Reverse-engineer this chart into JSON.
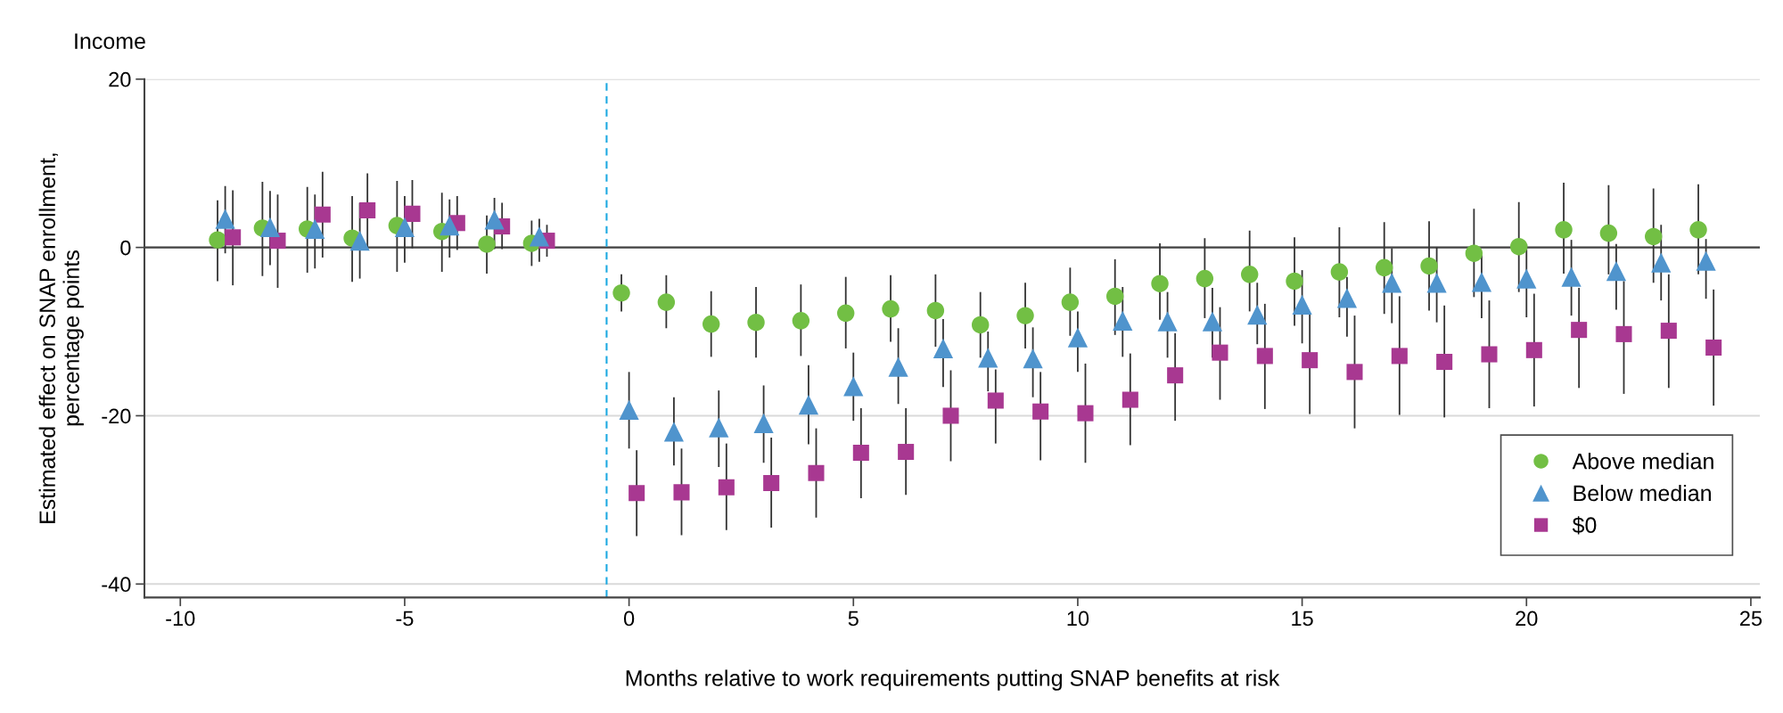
{
  "chart_data": {
    "type": "scatter",
    "xlabel": "Months relative to work requirements putting SNAP benefits at risk",
    "ylabel": "Estimated effect on SNAP enrollment,\npercentage points",
    "legend_title": "Income",
    "xlim": [
      -10.8,
      25.2
    ],
    "ylim": [
      -41.6,
      20
    ],
    "xticks": [
      -10,
      -5,
      0,
      5,
      10,
      15,
      20,
      25
    ],
    "yticks": [
      -40,
      -20,
      0,
      20
    ],
    "grid": "y",
    "legend": "bottom right",
    "ref_lines": [
      {
        "axis": "y",
        "value": 0,
        "label": null,
        "color": "#444444",
        "line_style": "solid"
      },
      {
        "axis": "x",
        "value": -0.5,
        "label": null,
        "color": "#1ca9e1",
        "line_style": "dashed"
      }
    ],
    "series": [
      {
        "name": "Above median",
        "color": "#72bf44",
        "marker": "circle",
        "x": [
          -9.17,
          -8.17,
          -7.17,
          -6.17,
          -5.17,
          -4.17,
          -3.17,
          -2.17,
          -0.17,
          0.83,
          1.83,
          2.83,
          3.83,
          4.83,
          5.83,
          6.83,
          7.83,
          8.83,
          9.83,
          10.83,
          11.83,
          12.83,
          13.83,
          14.83,
          15.83,
          16.83,
          17.83,
          18.83,
          19.83,
          20.83,
          21.83,
          22.83,
          23.83
        ],
        "values": [
          0.9,
          2.3,
          2.2,
          1.1,
          2.6,
          1.9,
          0.4,
          0.5,
          -5.4,
          -6.5,
          -9.1,
          -8.9,
          -8.7,
          -7.8,
          -7.3,
          -7.5,
          -9.2,
          -8.1,
          -6.5,
          -5.8,
          -4.3,
          -3.7,
          -3.2,
          -4.0,
          -2.9,
          -2.4,
          -2.2,
          -0.7,
          0.1,
          2.1,
          1.7,
          1.3,
          2.1
        ],
        "errors": [
          [
            -4.0,
            5.6
          ],
          [
            -3.4,
            7.8
          ],
          [
            -3.0,
            7.2
          ],
          [
            -4.1,
            6.1
          ],
          [
            -2.9,
            7.9
          ],
          [
            -2.9,
            6.5
          ],
          [
            -3.1,
            3.8
          ],
          [
            -2.2,
            3.2
          ],
          [
            -7.6,
            -3.2
          ],
          [
            -9.6,
            -3.3
          ],
          [
            -13.0,
            -5.2
          ],
          [
            -13.1,
            -4.7
          ],
          [
            -12.9,
            -4.4
          ],
          [
            -12.0,
            -3.5
          ],
          [
            -11.2,
            -3.3
          ],
          [
            -11.8,
            -3.2
          ],
          [
            -13.1,
            -5.3
          ],
          [
            -12.0,
            -4.2
          ],
          [
            -10.5,
            -2.4
          ],
          [
            -10.4,
            -1.4
          ],
          [
            -8.6,
            0.5
          ],
          [
            -8.4,
            1.1
          ],
          [
            -7.6,
            2.0
          ],
          [
            -9.3,
            1.2
          ],
          [
            -8.3,
            2.4
          ],
          [
            -7.9,
            3.0
          ],
          [
            -7.5,
            3.1
          ],
          [
            -5.9,
            4.6
          ],
          [
            -5.3,
            5.4
          ],
          [
            -3.1,
            7.7
          ],
          [
            -3.2,
            7.4
          ],
          [
            -4.2,
            7.0
          ],
          [
            -3.2,
            7.5
          ]
        ]
      },
      {
        "name": "Below median",
        "color": "#4f94cd",
        "marker": "triangle",
        "x": [
          -9,
          -8,
          -7,
          -6,
          -5,
          -4,
          -3,
          -2,
          0,
          1,
          2,
          3,
          4,
          5,
          6,
          7,
          8,
          9,
          10,
          11,
          12,
          13,
          14,
          15,
          16,
          17,
          18,
          19,
          20,
          21,
          22,
          23,
          24
        ],
        "values": [
          3.4,
          2.4,
          2.2,
          0.8,
          2.4,
          2.6,
          3.3,
          1.3,
          -19.3,
          -21.9,
          -21.4,
          -20.9,
          -18.7,
          -16.5,
          -14.2,
          -12.0,
          -13.1,
          -13.2,
          -10.7,
          -8.7,
          -8.8,
          -8.8,
          -8.0,
          -6.8,
          -6.0,
          -4.2,
          -4.2,
          -4.1,
          -3.7,
          -3.5,
          -2.8,
          -1.8,
          -1.6
        ],
        "errors": [
          [
            -0.7,
            7.3
          ],
          [
            -2.1,
            6.7
          ],
          [
            -2.5,
            6.3
          ],
          [
            -3.7,
            5.3
          ],
          [
            -1.8,
            6.1
          ],
          [
            -1.2,
            5.7
          ],
          [
            -0.2,
            5.9
          ],
          [
            -1.7,
            3.4
          ],
          [
            -23.9,
            -14.8
          ],
          [
            -25.9,
            -17.8
          ],
          [
            -26.1,
            -17.0
          ],
          [
            -25.6,
            -16.4
          ],
          [
            -23.4,
            -14.0
          ],
          [
            -20.6,
            -12.5
          ],
          [
            -18.6,
            -9.6
          ],
          [
            -16.6,
            -8.5
          ],
          [
            -17.1,
            -10.0
          ],
          [
            -17.8,
            -9.5
          ],
          [
            -14.8,
            -7.6
          ],
          [
            -13.0,
            -4.7
          ],
          [
            -13.1,
            -5.3
          ],
          [
            -13.1,
            -4.8
          ],
          [
            -11.5,
            -4.2
          ],
          [
            -11.4,
            -2.7
          ],
          [
            -10.6,
            -3.5
          ],
          [
            -9.0,
            -0.1
          ],
          [
            -8.9,
            0.0
          ],
          [
            -8.4,
            -0.9
          ],
          [
            -8.3,
            0.4
          ],
          [
            -8.1,
            0.9
          ],
          [
            -7.4,
            0.4
          ],
          [
            -6.3,
            2.7
          ],
          [
            -6.1,
            1.0
          ]
        ]
      },
      {
        "name": "$0",
        "color": "#a83891",
        "marker": "square",
        "x": [
          -8.83,
          -7.83,
          -6.83,
          -5.83,
          -4.83,
          -3.83,
          -2.83,
          -1.83,
          0.17,
          1.17,
          2.17,
          3.17,
          4.17,
          5.17,
          6.17,
          7.17,
          8.17,
          9.17,
          10.17,
          11.17,
          12.17,
          13.17,
          14.17,
          15.17,
          16.17,
          17.17,
          18.17,
          19.17,
          20.17,
          21.17,
          22.17,
          23.17,
          24.17
        ],
        "values": [
          1.2,
          0.8,
          3.9,
          4.4,
          4.0,
          2.9,
          2.5,
          0.8,
          -29.2,
          -29.1,
          -28.5,
          -28.0,
          -26.8,
          -24.4,
          -24.3,
          -20.0,
          -18.2,
          -19.5,
          -19.7,
          -18.1,
          -15.2,
          -12.5,
          -12.9,
          -13.4,
          -14.8,
          -12.9,
          -13.6,
          -12.7,
          -12.2,
          -9.8,
          -10.3,
          -9.9,
          -11.9
        ],
        "errors": [
          [
            -4.5,
            6.8
          ],
          [
            -4.8,
            6.3
          ],
          [
            -1.2,
            9.0
          ],
          [
            0.0,
            8.8
          ],
          [
            -0.1,
            8.0
          ],
          [
            -0.3,
            6.1
          ],
          [
            -0.2,
            5.3
          ],
          [
            -1.1,
            2.7
          ],
          [
            -34.3,
            -24.1
          ],
          [
            -34.2,
            -23.9
          ],
          [
            -33.6,
            -23.3
          ],
          [
            -33.3,
            -22.6
          ],
          [
            -32.1,
            -21.5
          ],
          [
            -29.8,
            -19.1
          ],
          [
            -29.4,
            -19.1
          ],
          [
            -25.4,
            -14.6
          ],
          [
            -23.3,
            -14.5
          ],
          [
            -25.3,
            -14.8
          ],
          [
            -25.6,
            -13.8
          ],
          [
            -23.5,
            -12.6
          ],
          [
            -20.6,
            -10.2
          ],
          [
            -18.1,
            -7.1
          ],
          [
            -19.2,
            -6.7
          ],
          [
            -19.8,
            -7.9
          ],
          [
            -21.5,
            -8.1
          ],
          [
            -19.9,
            -5.8
          ],
          [
            -20.2,
            -6.9
          ],
          [
            -19.1,
            -6.3
          ],
          [
            -18.9,
            -5.5
          ],
          [
            -16.7,
            -4.8
          ],
          [
            -17.4,
            -4.0
          ],
          [
            -16.7,
            -3.2
          ],
          [
            -18.8,
            -5.0
          ]
        ]
      }
    ]
  }
}
